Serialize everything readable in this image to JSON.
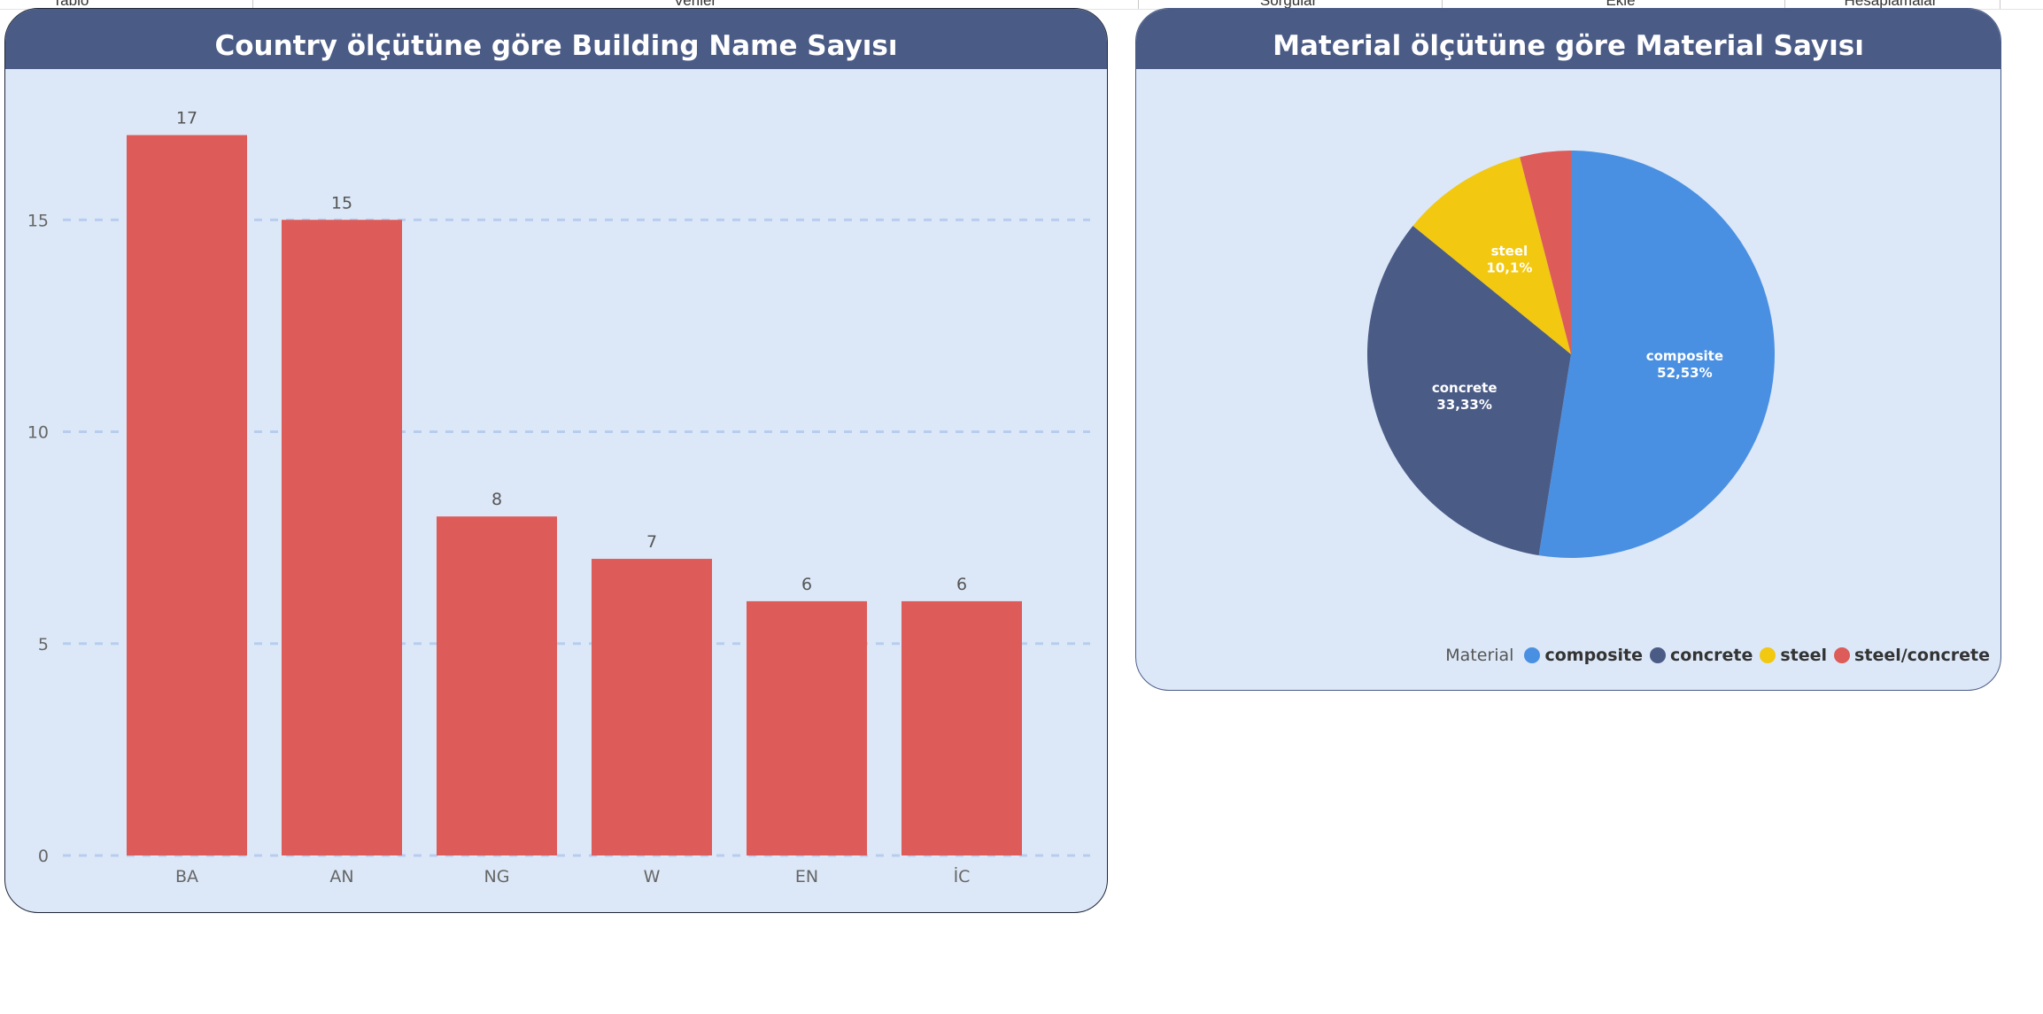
{
  "tabs": [
    {
      "label": "Tablo"
    },
    {
      "label": "Veriler"
    },
    {
      "label": "Sorgular"
    },
    {
      "label": "Ekle"
    },
    {
      "label": "Hesaplamalar"
    }
  ],
  "colors": {
    "header": "#4a5b86",
    "card_bg": "#dce8f8",
    "bar": "#dd5b58",
    "grid": "#b7cdee"
  },
  "bar_card": {
    "title": "Country ölçütüne göre Building Name Sayısı"
  },
  "pie_card": {
    "title": "Material ölçütüne göre Material Sayısı",
    "legend_title": "Material"
  },
  "chart_data": [
    {
      "type": "bar",
      "title": "Country ölçütüne göre Building Name Sayısı",
      "categories": [
        "BA",
        "AN",
        "NG",
        "W",
        "EN",
        "İC"
      ],
      "values": [
        17,
        15,
        8,
        7,
        6,
        6
      ],
      "y_ticks": [
        0,
        5,
        10,
        15
      ],
      "ylim": [
        0,
        17
      ],
      "grid": true,
      "grid_style": "dashed",
      "data_labels": true,
      "color": "#dd5b58"
    },
    {
      "type": "pie",
      "title": "Material ölçütüne göre Material Sayısı",
      "legend_title": "Material",
      "legend_position": "bottom-right",
      "slices": [
        {
          "label": "composite",
          "percent": 52.53,
          "percent_label": "52,53%",
          "color": "#4a90e2",
          "show_label": true
        },
        {
          "label": "concrete",
          "percent": 33.33,
          "percent_label": "33,33%",
          "color": "#4a5b86",
          "show_label": true
        },
        {
          "label": "steel",
          "percent": 10.1,
          "percent_label": "10,1%",
          "color": "#f2c811",
          "show_label": true
        },
        {
          "label": "steel/concrete",
          "percent": 4.04,
          "percent_label": "",
          "color": "#dd5b58",
          "show_label": false
        }
      ]
    }
  ]
}
